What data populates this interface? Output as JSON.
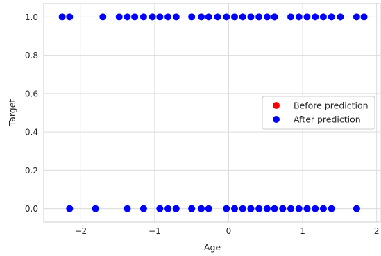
{
  "chart_data": {
    "type": "scatter",
    "title": "",
    "xlabel": "Age",
    "ylabel": "Target",
    "xlim": [
      -2.5,
      2.05
    ],
    "ylim": [
      -0.07,
      1.07
    ],
    "xticks": [
      -2,
      -1,
      0,
      1,
      2
    ],
    "xtick_labels": [
      "−2",
      "−1",
      "0",
      "1",
      "2"
    ],
    "yticks": [
      0.0,
      0.2,
      0.4,
      0.6,
      0.8,
      1.0
    ],
    "ytick_labels": [
      "0.0",
      "0.2",
      "0.4",
      "0.6",
      "0.8",
      "1.0"
    ],
    "grid": true,
    "legend_position": "center-right",
    "series": [
      {
        "name": "Before prediction",
        "color": "#ff0000",
        "points": [
          [
            0.62,
            1.0
          ]
        ]
      },
      {
        "name": "After prediction",
        "color": "#0000ff",
        "points": [
          [
            -2.25,
            1.0
          ],
          [
            -2.15,
            1.0
          ],
          [
            -1.7,
            1.0
          ],
          [
            -1.48,
            1.0
          ],
          [
            -1.37,
            1.0
          ],
          [
            -1.27,
            1.0
          ],
          [
            -1.15,
            1.0
          ],
          [
            -1.03,
            1.0
          ],
          [
            -0.93,
            1.0
          ],
          [
            -0.82,
            1.0
          ],
          [
            -0.71,
            1.0
          ],
          [
            -0.5,
            1.0
          ],
          [
            -0.37,
            1.0
          ],
          [
            -0.27,
            1.0
          ],
          [
            -0.15,
            1.0
          ],
          [
            -0.03,
            1.0
          ],
          [
            0.08,
            1.0
          ],
          [
            0.19,
            1.0
          ],
          [
            0.3,
            1.0
          ],
          [
            0.41,
            1.0
          ],
          [
            0.52,
            1.0
          ],
          [
            0.62,
            1.0
          ],
          [
            0.84,
            1.0
          ],
          [
            0.95,
            1.0
          ],
          [
            1.06,
            1.0
          ],
          [
            1.17,
            1.0
          ],
          [
            1.28,
            1.0
          ],
          [
            1.39,
            1.0
          ],
          [
            1.51,
            1.0
          ],
          [
            1.73,
            1.0
          ],
          [
            1.83,
            1.0
          ],
          [
            -2.15,
            0.0
          ],
          [
            -1.8,
            0.0
          ],
          [
            -1.37,
            0.0
          ],
          [
            -1.15,
            0.0
          ],
          [
            -0.93,
            0.0
          ],
          [
            -0.82,
            0.0
          ],
          [
            -0.71,
            0.0
          ],
          [
            -0.5,
            0.0
          ],
          [
            -0.37,
            0.0
          ],
          [
            -0.27,
            0.0
          ],
          [
            -0.03,
            0.0
          ],
          [
            0.08,
            0.0
          ],
          [
            0.19,
            0.0
          ],
          [
            0.3,
            0.0
          ],
          [
            0.41,
            0.0
          ],
          [
            0.52,
            0.0
          ],
          [
            0.62,
            0.0
          ],
          [
            0.73,
            0.0
          ],
          [
            0.84,
            0.0
          ],
          [
            0.95,
            0.0
          ],
          [
            1.06,
            0.0
          ],
          [
            1.17,
            0.0
          ],
          [
            1.28,
            0.0
          ],
          [
            1.39,
            0.0
          ],
          [
            1.73,
            0.0
          ]
        ]
      }
    ]
  }
}
